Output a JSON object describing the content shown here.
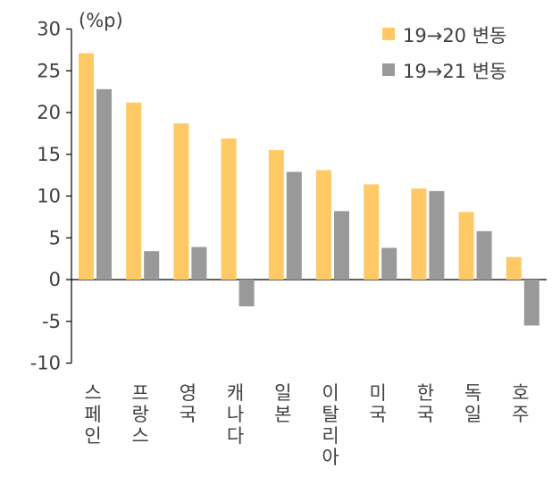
{
  "chart_data": {
    "type": "bar",
    "unit_label": "(%p)",
    "categories": [
      "스페인",
      "프랑스",
      "영국",
      "캐나다",
      "일본",
      "이탈리아",
      "미국",
      "한국",
      "독일",
      "호주"
    ],
    "series": [
      {
        "name": "19→20 변동",
        "color": "#FFC966",
        "values": [
          27.1,
          21.2,
          18.7,
          16.9,
          15.5,
          13.1,
          11.4,
          10.9,
          8.1,
          2.7
        ]
      },
      {
        "name": "19→21 변동",
        "color": "#999999",
        "values": [
          22.8,
          3.4,
          3.9,
          -3.2,
          12.9,
          8.2,
          3.8,
          10.6,
          5.8,
          -5.5
        ]
      }
    ],
    "ylim": [
      -10,
      30
    ],
    "yticks": [
      -10,
      -5,
      0,
      5,
      10,
      15,
      20,
      25,
      30
    ],
    "legend_position": "top-right",
    "xlabel": "",
    "ylabel": ""
  }
}
